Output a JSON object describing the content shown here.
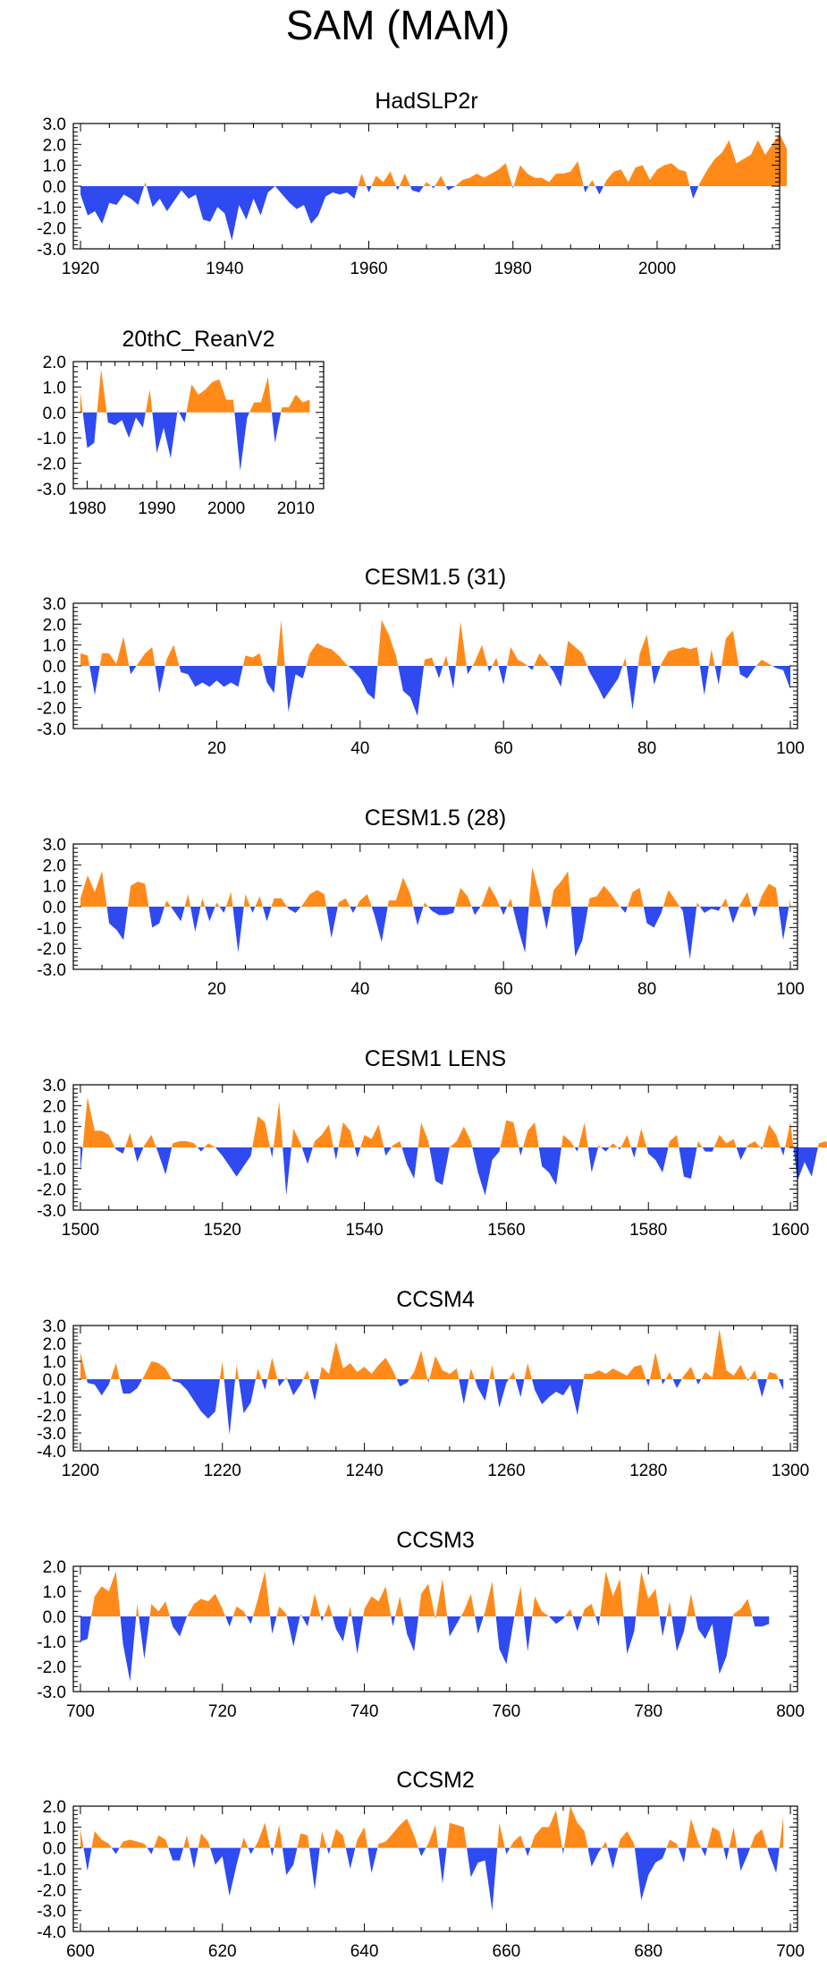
{
  "title": "SAM (MAM)",
  "colors": {
    "positive": "#ff8a1a",
    "negative": "#2e4af0",
    "axis": "#000000"
  },
  "chart_data": [
    {
      "type": "area",
      "title": "HadSLP2r",
      "xlim": [
        1919,
        2017
      ],
      "ylim": [
        -3.0,
        3.0
      ],
      "xticks": [
        1920,
        1940,
        1960,
        1980,
        2000
      ],
      "yticks": [
        -3.0,
        -2.0,
        -1.0,
        0.0,
        1.0,
        2.0,
        3.0
      ],
      "x_start": 1920,
      "x_step": 1,
      "values": [
        -0.4,
        -1.4,
        -1.2,
        -1.8,
        -0.8,
        -0.9,
        -0.4,
        -0.6,
        -0.9,
        0.2,
        -1.0,
        -0.6,
        -1.2,
        -0.7,
        -0.2,
        -0.6,
        -0.4,
        -1.6,
        -1.7,
        -1.0,
        -1.3,
        -2.6,
        -0.9,
        -1.6,
        -0.6,
        -1.4,
        -0.3,
        0.0,
        -0.4,
        -0.8,
        -1.1,
        -0.9,
        -1.8,
        -1.4,
        -0.5,
        -0.3,
        -0.4,
        -0.3,
        -0.6,
        0.6,
        -0.3,
        0.5,
        0.2,
        0.7,
        -0.2,
        0.6,
        -0.2,
        -0.3,
        0.2,
        -0.1,
        0.5,
        -0.2,
        0.0,
        0.3,
        0.4,
        0.6,
        0.4,
        0.6,
        0.8,
        1.1,
        -0.1,
        1.0,
        0.6,
        0.4,
        0.4,
        0.2,
        0.6,
        0.6,
        0.7,
        1.2,
        -0.3,
        0.3,
        -0.4,
        0.3,
        0.7,
        0.8,
        0.2,
        0.9,
        1.0,
        0.3,
        0.8,
        1.0,
        1.1,
        0.8,
        0.7,
        -0.6,
        0.2,
        0.8,
        1.3,
        1.6,
        2.2,
        1.1,
        1.3,
        1.5,
        2.2,
        1.5,
        2.0,
        2.5,
        1.8
      ]
    },
    {
      "type": "area",
      "title": "20thC_ReanV2",
      "xlim": [
        1978,
        2014
      ],
      "ylim": [
        -3.0,
        2.0
      ],
      "xticks": [
        1980,
        1990,
        2000,
        2010
      ],
      "yticks": [
        -3.0,
        -2.0,
        -1.0,
        0.0,
        1.0,
        2.0
      ],
      "x_start": 1979,
      "x_step": 1,
      "values": [
        0.8,
        -1.4,
        -1.2,
        1.7,
        -0.4,
        -0.5,
        -0.3,
        -1.0,
        -0.2,
        -0.6,
        0.9,
        -1.6,
        -0.6,
        -1.8,
        0.1,
        -0.4,
        1.1,
        0.7,
        0.9,
        1.2,
        1.3,
        0.5,
        0.5,
        -2.3,
        -0.2,
        0.4,
        0.4,
        1.4,
        -1.2,
        0.2,
        0.2,
        0.7,
        0.4,
        0.5
      ]
    },
    {
      "type": "area",
      "title": "CESM1.5 (31)",
      "xlim": [
        0,
        101
      ],
      "ylim": [
        -3.0,
        3.0
      ],
      "xticks": [
        20,
        40,
        60,
        80,
        100
      ],
      "yticks": [
        -3.0,
        -2.0,
        -1.0,
        0.0,
        1.0,
        2.0,
        3.0
      ],
      "x_start": 1,
      "x_step": 1,
      "values": [
        0.6,
        0.5,
        -1.4,
        0.6,
        0.6,
        0.1,
        1.4,
        -0.4,
        0.1,
        0.6,
        0.9,
        -1.3,
        0.3,
        1.0,
        -0.3,
        -0.4,
        -1.0,
        -0.8,
        -1.0,
        -0.7,
        -1.0,
        -0.8,
        -1.0,
        0.5,
        0.4,
        0.6,
        -0.8,
        -1.3,
        2.2,
        -2.2,
        -0.4,
        -0.6,
        0.6,
        1.1,
        0.9,
        0.8,
        0.5,
        0.1,
        -0.2,
        -0.6,
        -1.3,
        -1.6,
        2.2,
        1.5,
        0.5,
        -1.2,
        -1.5,
        -2.4,
        0.3,
        0.4,
        -0.6,
        0.5,
        -1.1,
        2.1,
        -0.4,
        0.2,
        1.0,
        -0.3,
        0.4,
        -0.9,
        0.9,
        0.3,
        0.1,
        -0.2,
        0.6,
        0.2,
        -0.3,
        -1.0,
        1.2,
        0.9,
        0.6,
        -0.3,
        -0.9,
        -1.6,
        -1.1,
        -0.6,
        0.4,
        -2.1,
        0.6,
        1.5,
        -0.9,
        0.1,
        0.7,
        0.8,
        0.9,
        0.8,
        0.9,
        -1.4,
        0.8,
        -0.9,
        1.3,
        1.7,
        -0.4,
        -0.6,
        -0.1,
        0.3,
        0.1,
        -0.1,
        -0.2,
        -1.1
      ]
    },
    {
      "type": "area",
      "title": "CESM1.5 (28)",
      "xlim": [
        0,
        101
      ],
      "ylim": [
        -3.0,
        3.0
      ],
      "xticks": [
        20,
        40,
        60,
        80,
        100
      ],
      "yticks": [
        -3.0,
        -2.0,
        -1.0,
        0.0,
        1.0,
        2.0,
        3.0
      ],
      "x_start": 1,
      "x_step": 1,
      "values": [
        0.4,
        1.5,
        0.7,
        1.7,
        -0.8,
        -1.1,
        -1.6,
        1.0,
        1.2,
        1.1,
        -1.0,
        -0.8,
        0.3,
        -0.2,
        -0.7,
        0.6,
        -1.2,
        0.4,
        -0.7,
        0.2,
        -0.3,
        0.7,
        -2.2,
        0.6,
        -0.3,
        0.5,
        -0.7,
        0.4,
        0.4,
        -0.1,
        -0.3,
        0.1,
        0.6,
        0.8,
        0.6,
        -1.5,
        0.2,
        0.4,
        -0.3,
        0.3,
        0.6,
        -0.4,
        -1.7,
        0.3,
        0.3,
        1.4,
        0.6,
        -0.9,
        0.2,
        -0.2,
        -0.4,
        -0.4,
        -0.3,
        0.9,
        0.5,
        -0.4,
        0.1,
        1.0,
        0.4,
        -0.4,
        0.4,
        -1.0,
        -2.2,
        1.9,
        0.6,
        -1.1,
        0.8,
        1.2,
        1.7,
        -2.4,
        -1.6,
        0.4,
        0.5,
        1.0,
        0.6,
        0.1,
        -0.3,
        0.7,
        0.9,
        -0.8,
        -1.0,
        -0.3,
        0.8,
        0.3,
        -0.2,
        -2.5,
        0.2,
        -0.3,
        -0.1,
        -0.2,
        0.4,
        -0.8,
        0.1,
        0.7,
        -0.5,
        0.5,
        1.1,
        0.9,
        -1.6,
        0.4
      ]
    },
    {
      "type": "area",
      "title": "CESM1 LENS",
      "xlim": [
        1499,
        1601
      ],
      "ylim": [
        -3.0,
        3.0
      ],
      "xticks": [
        1500,
        1520,
        1540,
        1560,
        1580,
        1600
      ],
      "yticks": [
        -3.0,
        -2.0,
        -1.0,
        0.0,
        1.0,
        2.0,
        3.0
      ],
      "x_start": 1500,
      "x_step": 1,
      "values": [
        -1.2,
        2.4,
        0.8,
        0.8,
        0.6,
        -0.1,
        -0.3,
        0.7,
        -0.7,
        0.1,
        0.6,
        -0.3,
        -1.3,
        0.2,
        0.3,
        0.3,
        0.2,
        -0.2,
        0.2,
        0.0,
        -0.4,
        -0.9,
        -1.4,
        -0.9,
        -0.4,
        1.5,
        1.2,
        -0.5,
        2.2,
        -2.3,
        0.9,
        0.2,
        -0.8,
        0.3,
        0.6,
        1.1,
        -0.6,
        1.2,
        0.8,
        -0.5,
        0.6,
        0.4,
        1.1,
        -0.4,
        0.1,
        0.3,
        -0.8,
        -1.5,
        1.2,
        0.3,
        -1.6,
        -1.8,
        0.0,
        0.3,
        1.0,
        0.3,
        -1.2,
        -2.3,
        -0.6,
        -0.2,
        1.3,
        1.2,
        -0.4,
        0.8,
        1.2,
        -0.9,
        -1.2,
        -1.8,
        0.6,
        0.3,
        -0.2,
        1.2,
        -1.2,
        0.1,
        -0.2,
        0.2,
        -0.1,
        0.6,
        -0.5,
        0.9,
        -0.3,
        -0.6,
        -1.2,
        0.3,
        0.6,
        -1.4,
        -1.5,
        0.3,
        -0.2,
        -0.2,
        0.6,
        0.2,
        0.4,
        -0.6,
        0.1,
        0.3,
        -0.1,
        1.1,
        0.6,
        -0.4,
        1.2,
        -1.6,
        -0.7,
        -1.4,
        0.2,
        0.3,
        -0.2,
        0.8
      ]
    },
    {
      "type": "area",
      "title": "CCSM4",
      "xlim": [
        1199,
        1301
      ],
      "ylim": [
        -4.0,
        3.0
      ],
      "xticks": [
        1200,
        1220,
        1240,
        1260,
        1280,
        1300
      ],
      "yticks": [
        -4.0,
        -3.0,
        -2.0,
        -1.0,
        0.0,
        1.0,
        2.0,
        3.0
      ],
      "x_start": 1200,
      "x_step": 1,
      "values": [
        1.5,
        -0.2,
        -0.3,
        -0.9,
        -0.3,
        0.9,
        -0.8,
        -0.8,
        -0.5,
        0.2,
        1.0,
        0.9,
        0.6,
        -0.1,
        -0.2,
        -0.6,
        -1.2,
        -1.8,
        -2.2,
        -1.8,
        1.0,
        -3.1,
        0.8,
        -1.9,
        -1.3,
        0.6,
        -0.6,
        1.2,
        -0.4,
        0.1,
        -0.9,
        -0.3,
        0.5,
        -1.2,
        0.7,
        0.3,
        2.1,
        0.6,
        0.9,
        0.4,
        0.7,
        0.3,
        0.8,
        1.2,
        0.5,
        -0.4,
        -0.2,
        0.4,
        1.6,
        -0.2,
        1.3,
        0.5,
        0.3,
        0.6,
        -1.4,
        0.6,
        -0.5,
        -1.2,
        0.8,
        -1.6,
        -0.2,
        0.4,
        -1.0,
        0.9,
        -0.6,
        -1.4,
        -1.0,
        -0.7,
        -0.9,
        -0.3,
        -2.0,
        0.3,
        0.3,
        0.5,
        0.3,
        0.6,
        0.4,
        0.2,
        0.7,
        0.8,
        -0.4,
        1.5,
        -0.3,
        0.4,
        -0.5,
        0.2,
        0.7,
        -0.3,
        0.4,
        0.1,
        2.8,
        0.5,
        0.2,
        0.8,
        -0.1,
        0.5,
        -1.0,
        0.4,
        0.3,
        -0.6
      ]
    },
    {
      "type": "area",
      "title": "CCSM3",
      "xlim": [
        699,
        801
      ],
      "ylim": [
        -3.0,
        2.0
      ],
      "xticks": [
        700,
        720,
        740,
        760,
        780,
        800
      ],
      "yticks": [
        -3.0,
        -2.0,
        -1.0,
        0.0,
        1.0,
        2.0
      ],
      "x_start": 700,
      "x_step": 1,
      "values": [
        -1.0,
        -0.9,
        0.8,
        1.2,
        1.0,
        1.8,
        -1.1,
        -2.6,
        0.5,
        -1.7,
        0.5,
        0.2,
        0.6,
        -0.4,
        -0.8,
        0.0,
        0.5,
        0.7,
        0.6,
        0.9,
        0.3,
        -0.4,
        0.4,
        0.2,
        -0.3,
        0.7,
        1.8,
        -0.7,
        0.4,
        0.1,
        -1.2,
        0.1,
        -0.4,
        0.9,
        -0.2,
        0.5,
        -0.5,
        -1.0,
        0.4,
        -1.5,
        0.3,
        0.8,
        0.6,
        1.2,
        -0.4,
        0.8,
        -0.7,
        -1.4,
        0.9,
        1.3,
        -0.1,
        1.5,
        -0.8,
        -0.3,
        0.2,
        0.9,
        -0.7,
        0.2,
        1.4,
        -1.3,
        -1.9,
        -0.2,
        1.2,
        -1.4,
        0.8,
        0.2,
        0.0,
        -0.3,
        -0.1,
        0.3,
        -0.6,
        0.3,
        0.5,
        -0.4,
        1.8,
        0.8,
        1.5,
        -1.5,
        -0.6,
        1.8,
        0.7,
        1.1,
        -0.8,
        0.6,
        -1.4,
        -0.6,
        0.9,
        -0.5,
        -0.9,
        -0.3,
        -2.3,
        -1.6,
        0.1,
        0.3,
        0.7,
        -0.4,
        -0.4,
        -0.3
      ]
    },
    {
      "type": "area",
      "title": "CCSM2",
      "xlim": [
        599,
        701
      ],
      "ylim": [
        -4.0,
        2.0
      ],
      "xticks": [
        600,
        620,
        640,
        660,
        680,
        700
      ],
      "yticks": [
        -4.0,
        -3.0,
        -2.0,
        -1.0,
        0.0,
        1.0,
        2.0
      ],
      "x_start": 600,
      "x_step": 1,
      "values": [
        0.9,
        -1.1,
        0.8,
        0.4,
        0.2,
        -0.3,
        0.3,
        0.4,
        0.3,
        0.2,
        -0.3,
        0.6,
        0.4,
        -0.6,
        -0.6,
        0.6,
        -1.0,
        0.7,
        0.3,
        -0.8,
        -0.4,
        -2.3,
        -0.8,
        0.5,
        -0.3,
        0.3,
        1.2,
        -0.4,
        1.1,
        -1.3,
        -0.8,
        0.7,
        0.6,
        -2.0,
        0.8,
        -0.3,
        0.9,
        0.6,
        -1.0,
        0.4,
        1.0,
        -1.2,
        0.2,
        0.3,
        0.7,
        1.1,
        1.4,
        0.6,
        -0.4,
        0.2,
        1.1,
        -1.7,
        1.2,
        1.1,
        1.0,
        -1.4,
        -0.7,
        -0.6,
        -3.0,
        1.2,
        -0.3,
        0.3,
        0.6,
        -0.4,
        0.6,
        1.0,
        1.0,
        1.8,
        -0.3,
        2.0,
        1.2,
        0.8,
        -0.9,
        -0.2,
        0.3,
        -1.0,
        0.4,
        0.8,
        0.2,
        -2.5,
        -1.3,
        -0.7,
        -0.5,
        0.4,
        0.2,
        -0.7,
        1.4,
        0.3,
        -0.4,
        1.0,
        0.8,
        -0.6,
        1.0,
        -1.1,
        -0.3,
        0.6,
        0.9,
        -0.3,
        -1.2,
        1.5
      ]
    }
  ]
}
